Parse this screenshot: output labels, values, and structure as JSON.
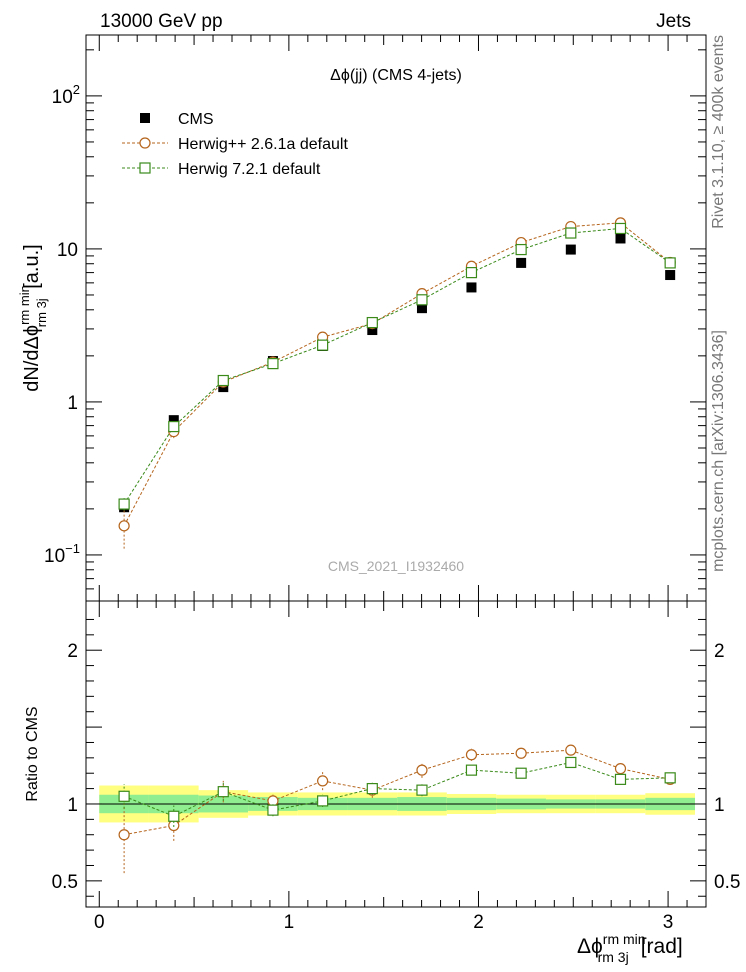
{
  "header": {
    "left": "13000 GeV pp",
    "right": "Jets"
  },
  "side_labels": {
    "rivet": "Rivet 3.1.10, ≥ 400k events",
    "mcplots": "mcplots.cern.ch [arXiv:1306.3436]"
  },
  "watermark": "CMS_2021_I1932460",
  "chart_data": [
    {
      "type": "scatter",
      "title": "Δϕ(jj) (CMS 4-jets)",
      "ylabel": "dN/dΔϕ^{rm min}_{rm 3j} [a.u.]",
      "xlabel": "",
      "yscale": "log",
      "ylim": [
        0.05,
        250
      ],
      "xlim": [
        -0.07,
        3.2
      ],
      "y_ticks": [
        {
          "value": 0.1,
          "label": "10",
          "exp": "−1"
        },
        {
          "value": 1,
          "label": "1",
          "exp": ""
        },
        {
          "value": 10,
          "label": "10",
          "exp": ""
        },
        {
          "value": 100,
          "label": "10",
          "exp": "2"
        }
      ],
      "x": [
        0.131,
        0.393,
        0.654,
        0.916,
        1.178,
        1.44,
        1.702,
        1.963,
        2.225,
        2.487,
        2.749,
        3.011
      ],
      "series": [
        {
          "name": "CMS",
          "marker": "square-filled",
          "color": "#000000",
          "values": [
            0.205,
            0.76,
            1.25,
            1.85,
            2.32,
            2.95,
            4.1,
            5.6,
            8.1,
            9.9,
            11.7,
            6.75
          ]
        },
        {
          "name": "Herwig++ 2.6.1a default",
          "marker": "circle-open",
          "color": "#b5651d",
          "values": [
            0.155,
            0.64,
            1.35,
            1.82,
            2.65,
            3.25,
            5.1,
            7.7,
            11.0,
            14.0,
            14.8,
            8.15
          ],
          "errors": [
            0.045,
            0.06,
            0.06,
            0.06,
            0.07,
            0.08,
            0.1,
            0.12,
            0.15,
            0.18,
            0.2,
            0.15
          ]
        },
        {
          "name": "Herwig 7.2.1 default",
          "marker": "square-open",
          "color": "#3a8a1a",
          "values": [
            0.215,
            0.69,
            1.38,
            1.78,
            2.35,
            3.3,
            4.65,
            7.0,
            9.9,
            12.7,
            13.6,
            8.1
          ],
          "errors": [
            0.02,
            0.05,
            0.05,
            0.05,
            0.06,
            0.07,
            0.09,
            0.11,
            0.13,
            0.15,
            0.18,
            0.14
          ]
        }
      ],
      "legend_position": "top-left"
    },
    {
      "type": "scatter",
      "title": "",
      "ylabel": "Ratio to CMS",
      "xlabel": "Δϕ^{rm min}_{rm 3j} [rad]",
      "yscale": "linear",
      "ylim": [
        0.33,
        2.32
      ],
      "xlim": [
        -0.07,
        3.2
      ],
      "y_ticks": [
        0.5,
        1,
        1.5,
        2
      ],
      "y_tick_labels": [
        "0.5",
        "1",
        "",
        "2"
      ],
      "x_ticks": [
        0,
        1,
        2,
        3
      ],
      "x_tick_labels": [
        "0",
        "1",
        "2",
        "3"
      ],
      "bands": {
        "bin_edges": [
          0.0,
          0.262,
          0.524,
          0.785,
          1.047,
          1.309,
          1.571,
          1.833,
          2.094,
          2.356,
          2.618,
          2.88,
          3.142
        ],
        "stat_half_width": [
          0.06,
          0.06,
          0.055,
          0.045,
          0.04,
          0.04,
          0.045,
          0.04,
          0.035,
          0.03,
          0.03,
          0.04
        ],
        "total_half_width": [
          0.12,
          0.12,
          0.09,
          0.075,
          0.075,
          0.075,
          0.075,
          0.065,
          0.06,
          0.06,
          0.06,
          0.07
        ],
        "stat_color": "#90ee90",
        "total_color": "#ffff80"
      },
      "x": [
        0.131,
        0.393,
        0.654,
        0.916,
        1.178,
        1.44,
        1.702,
        1.963,
        2.225,
        2.487,
        2.749,
        3.011
      ],
      "series": [
        {
          "name": "Herwig++ 2.6.1a default",
          "marker": "circle-open",
          "color": "#b5651d",
          "values": [
            0.8,
            0.86,
            1.08,
            1.02,
            1.15,
            1.09,
            1.22,
            1.32,
            1.33,
            1.35,
            1.23,
            1.16
          ],
          "errors": [
            0.25,
            0.1,
            0.07,
            0.05,
            0.06,
            0.05,
            0.05,
            0.04,
            0.03,
            0.03,
            0.03,
            0.03
          ]
        },
        {
          "name": "Herwig 7.2.1 default",
          "marker": "square-open",
          "color": "#3a8a1a",
          "values": [
            1.05,
            0.92,
            1.08,
            0.96,
            1.02,
            1.1,
            1.09,
            1.22,
            1.2,
            1.27,
            1.16,
            1.17
          ],
          "errors": [
            0.08,
            0.07,
            0.06,
            0.04,
            0.04,
            0.04,
            0.04,
            0.03,
            0.03,
            0.03,
            0.03,
            0.03
          ]
        }
      ]
    }
  ]
}
